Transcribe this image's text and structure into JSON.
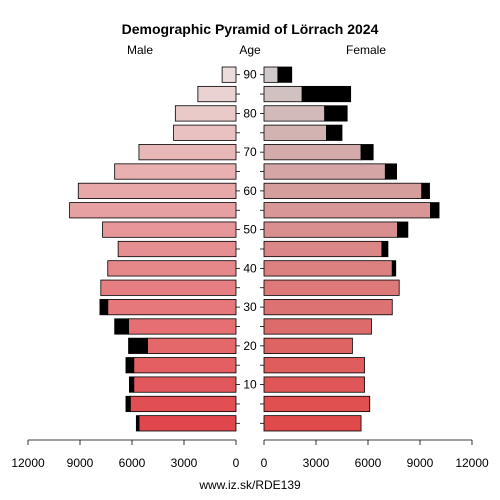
{
  "chart_data": {
    "type": "bar",
    "title": "Demographic Pyramid of Lörrach 2024",
    "footer": "www.iz.sk/RDE139",
    "left_label": "Male",
    "center_label": "Age",
    "right_label": "Female",
    "age_ticks": [
      "10",
      "20",
      "30",
      "40",
      "50",
      "60",
      "70",
      "80",
      "90"
    ],
    "x_ticks_male": [
      "12000",
      "9000",
      "6000",
      "3000",
      "0"
    ],
    "x_ticks_female": [
      "0",
      "3000",
      "6000",
      "9000",
      "12000"
    ],
    "xlim": [
      0,
      12000
    ],
    "age_groups": [
      "0-4",
      "5-9",
      "10-14",
      "15-19",
      "20-24",
      "25-29",
      "30-34",
      "35-39",
      "40-44",
      "45-49",
      "50-54",
      "55-59",
      "60-64",
      "65-69",
      "70-74",
      "75-79",
      "80-84",
      "85-89",
      "90+"
    ],
    "series": [
      {
        "name": "Male",
        "values": [
          5600,
          6100,
          5900,
          5900,
          5100,
          6200,
          7400,
          7800,
          7400,
          6800,
          7700,
          9600,
          9100,
          7000,
          5600,
          3600,
          3500,
          2200,
          800
        ],
        "excess": [
          150,
          250,
          250,
          450,
          1100,
          800,
          450,
          0,
          0,
          0,
          0,
          0,
          0,
          0,
          0,
          0,
          0,
          0,
          0
        ]
      },
      {
        "name": "Female",
        "values": [
          5600,
          6100,
          5800,
          5800,
          5100,
          6200,
          7400,
          7800,
          7400,
          6800,
          7700,
          9600,
          9100,
          7000,
          5600,
          3600,
          3500,
          2200,
          800
        ],
        "excess": [
          0,
          0,
          0,
          0,
          0,
          0,
          0,
          0,
          200,
          350,
          600,
          500,
          450,
          650,
          700,
          900,
          1300,
          2800,
          800
        ]
      }
    ]
  }
}
